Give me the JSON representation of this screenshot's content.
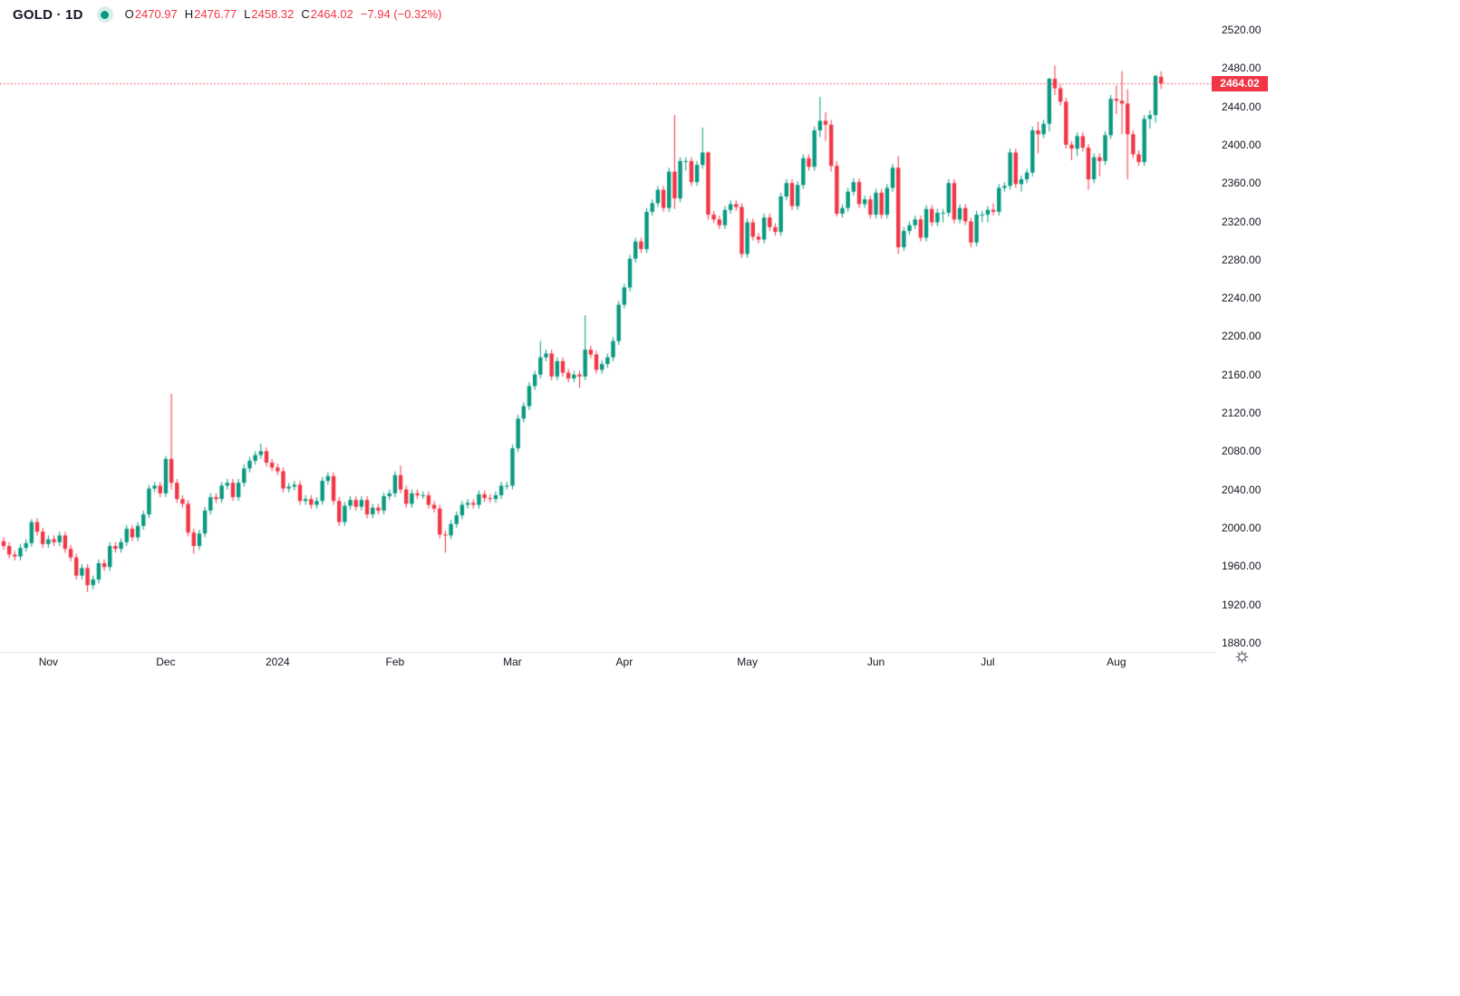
{
  "header": {
    "symbol_text": "GOLD · 1D",
    "ohlc": {
      "o_label": "O",
      "o_value": "2470.97",
      "h_label": "H",
      "h_value": "2476.77",
      "l_label": "L",
      "l_value": "2458.32",
      "c_label": "C",
      "c_value": "2464.02"
    },
    "change": "−7.94 (−0.32%)",
    "status_dot_color": "#089981"
  },
  "chart_data": {
    "type": "candlestick",
    "title": "GOLD daily candlestick chart",
    "symbol": "GOLD",
    "interval": "1D",
    "up_color": "#089981",
    "down_color": "#f23645",
    "grid": false,
    "price_axis": {
      "min": 1880,
      "max": 2520,
      "step": 40,
      "tick_labels": [
        "2520.00",
        "2480.00",
        "2440.00",
        "2400.00",
        "2360.00",
        "2320.00",
        "2280.00",
        "2240.00",
        "2200.00",
        "2160.00",
        "2120.00",
        "2080.00",
        "2040.00",
        "2000.00",
        "1960.00",
        "1920.00",
        "1880.00"
      ]
    },
    "time_axis": {
      "ticks": [
        {
          "label": "Nov",
          "index": 8
        },
        {
          "label": "Dec",
          "index": 29
        },
        {
          "label": "2024",
          "index": 49
        },
        {
          "label": "Feb",
          "index": 70
        },
        {
          "label": "Mar",
          "index": 91
        },
        {
          "label": "Apr",
          "index": 111
        },
        {
          "label": "May",
          "index": 133
        },
        {
          "label": "Jun",
          "index": 156
        },
        {
          "label": "Jul",
          "index": 176
        },
        {
          "label": "Aug",
          "index": 199
        }
      ]
    },
    "last_price": {
      "value": 2464.02,
      "label": "2464.02",
      "color": "#f23645"
    },
    "candles": [
      [
        1986,
        1990,
        1977,
        1981
      ],
      [
        1981,
        1985,
        1968,
        1972
      ],
      [
        1972,
        1976,
        1966,
        1970
      ],
      [
        1970,
        1983,
        1966,
        1979
      ],
      [
        1979,
        1988,
        1975,
        1984
      ],
      [
        1984,
        2009,
        1980,
        2006
      ],
      [
        2006,
        2010,
        1992,
        1996
      ],
      [
        1996,
        2000,
        1979,
        1983
      ],
      [
        1983,
        1992,
        1979,
        1988
      ],
      [
        1988,
        1992,
        1981,
        1985
      ],
      [
        1985,
        1996,
        1981,
        1992
      ],
      [
        1992,
        1996,
        1974,
        1978
      ],
      [
        1978,
        1982,
        1965,
        1969
      ],
      [
        1969,
        1973,
        1946,
        1950
      ],
      [
        1950,
        1962,
        1946,
        1958
      ],
      [
        1958,
        1962,
        1933,
        1940
      ],
      [
        1940,
        1950,
        1936,
        1946
      ],
      [
        1946,
        1967,
        1942,
        1963
      ],
      [
        1963,
        1967,
        1955,
        1959
      ],
      [
        1959,
        1985,
        1955,
        1981
      ],
      [
        1981,
        1985,
        1974,
        1978
      ],
      [
        1978,
        1989,
        1974,
        1985
      ],
      [
        1985,
        2003,
        1981,
        1999
      ],
      [
        1999,
        2003,
        1986,
        1990
      ],
      [
        1990,
        2006,
        1986,
        2002
      ],
      [
        2002,
        2018,
        1998,
        2014
      ],
      [
        2014,
        2045,
        2010,
        2041
      ],
      [
        2041,
        2048,
        2037,
        2044
      ],
      [
        2044,
        2048,
        2032,
        2036
      ],
      [
        2036,
        2075,
        2032,
        2072
      ],
      [
        2072,
        2140,
        2040,
        2047
      ],
      [
        2047,
        2051,
        2026,
        2030
      ],
      [
        2030,
        2034,
        2021,
        2025
      ],
      [
        2025,
        2029,
        1991,
        1995
      ],
      [
        1995,
        1999,
        1973,
        1981
      ],
      [
        1981,
        1998,
        1977,
        1994
      ],
      [
        1994,
        2022,
        1990,
        2018
      ],
      [
        2018,
        2036,
        2014,
        2032
      ],
      [
        2032,
        2036,
        2026,
        2030
      ],
      [
        2030,
        2048,
        2026,
        2044
      ],
      [
        2044,
        2051,
        2040,
        2047
      ],
      [
        2047,
        2051,
        2028,
        2032
      ],
      [
        2032,
        2051,
        2028,
        2047
      ],
      [
        2047,
        2066,
        2043,
        2062
      ],
      [
        2062,
        2074,
        2058,
        2070
      ],
      [
        2070,
        2080,
        2066,
        2076
      ],
      [
        2076,
        2088,
        2072,
        2080
      ],
      [
        2080,
        2084,
        2064,
        2068
      ],
      [
        2068,
        2072,
        2059,
        2063
      ],
      [
        2063,
        2067,
        2055,
        2059
      ],
      [
        2059,
        2063,
        2037,
        2041
      ],
      [
        2041,
        2047,
        2037,
        2043
      ],
      [
        2043,
        2049,
        2039,
        2045
      ],
      [
        2045,
        2049,
        2024,
        2028
      ],
      [
        2028,
        2034,
        2024,
        2030
      ],
      [
        2030,
        2034,
        2020,
        2024
      ],
      [
        2024,
        2032,
        2020,
        2028
      ],
      [
        2028,
        2053,
        2024,
        2049
      ],
      [
        2049,
        2058,
        2045,
        2054
      ],
      [
        2054,
        2058,
        2024,
        2028
      ],
      [
        2028,
        2032,
        2002,
        2006
      ],
      [
        2006,
        2027,
        2002,
        2023
      ],
      [
        2023,
        2033,
        2019,
        2029
      ],
      [
        2029,
        2033,
        2018,
        2022
      ],
      [
        2022,
        2033,
        2018,
        2029
      ],
      [
        2029,
        2033,
        2010,
        2014
      ],
      [
        2014,
        2025,
        2010,
        2021
      ],
      [
        2021,
        2025,
        2014,
        2018
      ],
      [
        2018,
        2037,
        2014,
        2033
      ],
      [
        2033,
        2040,
        2029,
        2036
      ],
      [
        2036,
        2059,
        2032,
        2055
      ],
      [
        2055,
        2065,
        2036,
        2040
      ],
      [
        2040,
        2044,
        2021,
        2025
      ],
      [
        2025,
        2040,
        2021,
        2036
      ],
      [
        2036,
        2040,
        2030,
        2034
      ],
      [
        2034,
        2038,
        2030,
        2034
      ],
      [
        2034,
        2038,
        2020,
        2024
      ],
      [
        2024,
        2028,
        2016,
        2020
      ],
      [
        2020,
        2024,
        1989,
        1993
      ],
      [
        1993,
        1997,
        1974,
        1992
      ],
      [
        1992,
        2008,
        1988,
        2004
      ],
      [
        2004,
        2017,
        2000,
        2013
      ],
      [
        2013,
        2028,
        2009,
        2024
      ],
      [
        2024,
        2030,
        2020,
        2026
      ],
      [
        2026,
        2030,
        2020,
        2024
      ],
      [
        2024,
        2039,
        2020,
        2035
      ],
      [
        2035,
        2039,
        2027,
        2031
      ],
      [
        2031,
        2035,
        2026,
        2030
      ],
      [
        2030,
        2038,
        2026,
        2034
      ],
      [
        2034,
        2048,
        2030,
        2044
      ],
      [
        2044,
        2048,
        2040,
        2044
      ],
      [
        2044,
        2087,
        2040,
        2083
      ],
      [
        2083,
        2118,
        2079,
        2114
      ],
      [
        2114,
        2131,
        2110,
        2127
      ],
      [
        2127,
        2152,
        2123,
        2148
      ],
      [
        2148,
        2164,
        2144,
        2160
      ],
      [
        2160,
        2195,
        2156,
        2178
      ],
      [
        2178,
        2186,
        2174,
        2182
      ],
      [
        2182,
        2186,
        2154,
        2158
      ],
      [
        2158,
        2178,
        2154,
        2174
      ],
      [
        2174,
        2178,
        2158,
        2162
      ],
      [
        2162,
        2166,
        2152,
        2156
      ],
      [
        2156,
        2164,
        2152,
        2160
      ],
      [
        2160,
        2164,
        2146,
        2158
      ],
      [
        2158,
        2222,
        2154,
        2186
      ],
      [
        2186,
        2190,
        2177,
        2181
      ],
      [
        2181,
        2185,
        2161,
        2165
      ],
      [
        2165,
        2175,
        2161,
        2171
      ],
      [
        2171,
        2182,
        2167,
        2178
      ],
      [
        2178,
        2199,
        2174,
        2195
      ],
      [
        2195,
        2237,
        2191,
        2233
      ],
      [
        2233,
        2255,
        2229,
        2251
      ],
      [
        2251,
        2285,
        2247,
        2281
      ],
      [
        2281,
        2303,
        2277,
        2299
      ],
      [
        2299,
        2303,
        2287,
        2291
      ],
      [
        2291,
        2334,
        2287,
        2330
      ],
      [
        2330,
        2343,
        2326,
        2339
      ],
      [
        2339,
        2357,
        2335,
        2353
      ],
      [
        2353,
        2357,
        2330,
        2334
      ],
      [
        2334,
        2376,
        2330,
        2372
      ],
      [
        2372,
        2431,
        2333,
        2344
      ],
      [
        2344,
        2387,
        2340,
        2383
      ],
      [
        2383,
        2387,
        2373,
        2383
      ],
      [
        2383,
        2387,
        2357,
        2361
      ],
      [
        2361,
        2383,
        2357,
        2379
      ],
      [
        2379,
        2418,
        2375,
        2392
      ],
      [
        2392,
        2393,
        2322,
        2327
      ],
      [
        2327,
        2331,
        2318,
        2322
      ],
      [
        2322,
        2326,
        2312,
        2316
      ],
      [
        2316,
        2336,
        2312,
        2332
      ],
      [
        2332,
        2342,
        2328,
        2338
      ],
      [
        2338,
        2342,
        2331,
        2335
      ],
      [
        2335,
        2339,
        2282,
        2286
      ],
      [
        2286,
        2323,
        2282,
        2319
      ],
      [
        2319,
        2323,
        2300,
        2304
      ],
      [
        2304,
        2308,
        2297,
        2301
      ],
      [
        2301,
        2328,
        2297,
        2324
      ],
      [
        2324,
        2328,
        2310,
        2314
      ],
      [
        2314,
        2318,
        2305,
        2309
      ],
      [
        2309,
        2350,
        2305,
        2346
      ],
      [
        2346,
        2364,
        2342,
        2360
      ],
      [
        2360,
        2364,
        2332,
        2336
      ],
      [
        2336,
        2362,
        2332,
        2358
      ],
      [
        2358,
        2390,
        2354,
        2386
      ],
      [
        2386,
        2390,
        2373,
        2377
      ],
      [
        2377,
        2419,
        2373,
        2415
      ],
      [
        2415,
        2450,
        2408,
        2425
      ],
      [
        2425,
        2434,
        2404,
        2421
      ],
      [
        2421,
        2426,
        2372,
        2378
      ],
      [
        2378,
        2383,
        2325,
        2328
      ],
      [
        2328,
        2338,
        2324,
        2334
      ],
      [
        2334,
        2355,
        2330,
        2351
      ],
      [
        2351,
        2365,
        2347,
        2361
      ],
      [
        2361,
        2365,
        2334,
        2338
      ],
      [
        2338,
        2347,
        2334,
        2343
      ],
      [
        2343,
        2347,
        2323,
        2327
      ],
      [
        2327,
        2354,
        2323,
        2350
      ],
      [
        2350,
        2354,
        2323,
        2327
      ],
      [
        2327,
        2359,
        2323,
        2355
      ],
      [
        2355,
        2380,
        2351,
        2376
      ],
      [
        2376,
        2388,
        2286,
        2293
      ],
      [
        2293,
        2314,
        2289,
        2310
      ],
      [
        2310,
        2320,
        2306,
        2316
      ],
      [
        2316,
        2326,
        2312,
        2322
      ],
      [
        2322,
        2326,
        2299,
        2303
      ],
      [
        2303,
        2337,
        2299,
        2333
      ],
      [
        2333,
        2337,
        2315,
        2319
      ],
      [
        2319,
        2333,
        2315,
        2329
      ],
      [
        2329,
        2333,
        2319,
        2329
      ],
      [
        2329,
        2364,
        2325,
        2360
      ],
      [
        2360,
        2364,
        2318,
        2322
      ],
      [
        2322,
        2338,
        2318,
        2334
      ],
      [
        2334,
        2338,
        2316,
        2320
      ],
      [
        2320,
        2324,
        2293,
        2298
      ],
      [
        2298,
        2331,
        2294,
        2327
      ],
      [
        2327,
        2331,
        2319,
        2327
      ],
      [
        2327,
        2336,
        2319,
        2332
      ],
      [
        2332,
        2339,
        2326,
        2330
      ],
      [
        2330,
        2359,
        2326,
        2355
      ],
      [
        2355,
        2361,
        2351,
        2357
      ],
      [
        2357,
        2396,
        2353,
        2392
      ],
      [
        2392,
        2396,
        2355,
        2359
      ],
      [
        2359,
        2368,
        2351,
        2364
      ],
      [
        2364,
        2375,
        2360,
        2371
      ],
      [
        2371,
        2419,
        2367,
        2415
      ],
      [
        2415,
        2424,
        2391,
        2411
      ],
      [
        2411,
        2426,
        2407,
        2422
      ],
      [
        2422,
        2470,
        2414,
        2469
      ],
      [
        2469,
        2483,
        2452,
        2459
      ],
      [
        2459,
        2463,
        2441,
        2445
      ],
      [
        2445,
        2449,
        2396,
        2400
      ],
      [
        2400,
        2404,
        2384,
        2396
      ],
      [
        2396,
        2413,
        2388,
        2409
      ],
      [
        2409,
        2413,
        2393,
        2397
      ],
      [
        2397,
        2401,
        2353,
        2364
      ],
      [
        2364,
        2391,
        2360,
        2387
      ],
      [
        2387,
        2391,
        2367,
        2383
      ],
      [
        2383,
        2414,
        2379,
        2410
      ],
      [
        2410,
        2452,
        2406,
        2448
      ],
      [
        2448,
        2462,
        2432,
        2446
      ],
      [
        2446,
        2477,
        2411,
        2443
      ],
      [
        2443,
        2458,
        2364,
        2411
      ],
      [
        2411,
        2415,
        2386,
        2390
      ],
      [
        2390,
        2394,
        2378,
        2382
      ],
      [
        2382,
        2431,
        2378,
        2427
      ],
      [
        2427,
        2436,
        2417,
        2431
      ],
      [
        2431,
        2473,
        2423,
        2472
      ],
      [
        2470.97,
        2476.77,
        2458.32,
        2464.02
      ]
    ]
  }
}
